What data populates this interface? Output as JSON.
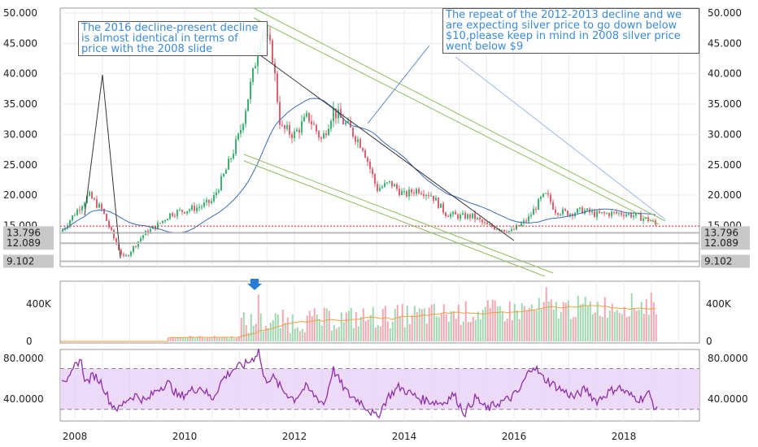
{
  "colors": {
    "up": "#3cb371",
    "down": "#e06070",
    "ma": "#3b6bb5",
    "volume_ma": "#f0a040",
    "rsi": "#8e2fa8",
    "rsi_band": "#e8d0f6",
    "channel": "#8fbf60",
    "trend": "#333333",
    "support": "#bbbbbb",
    "last_price": "#e03030",
    "annotation_text": "#3a8ad4",
    "arrow": "#2a7bd5"
  },
  "annotations": [
    {
      "text": "The 2016 decline-present decline is almost identical in terms of price with the 2008 slide"
    },
    {
      "text": "The repeat of the 2012-2013 decline and we are expecting silver price to go down below $10,please keep in mind in 2008 silver price went below $9"
    }
  ],
  "chart_data": [
    {
      "type": "candlestick",
      "panel": "price",
      "title": "",
      "y_ticks": [
        "50.000",
        "45.000",
        "40.000",
        "35.000",
        "30.000",
        "25.000",
        "20.000",
        "15.000"
      ],
      "ylim": [
        8,
        51
      ],
      "price_labels": [
        "13.796",
        "12.089",
        "9.102"
      ],
      "horizontal_levels": [
        13.796,
        12.089,
        9.102
      ],
      "series": [
        {
          "x": [
            2007.75,
            2008.0,
            2008.25,
            2008.5,
            2008.75,
            2008.9,
            2009.25,
            2009.5,
            2009.75,
            2010.0,
            2010.25,
            2010.5,
            2010.75,
            2011.0,
            2011.25,
            2011.4,
            2011.6,
            2011.75,
            2012.0,
            2012.25,
            2012.5,
            2012.7,
            2013.0,
            2013.25,
            2013.5,
            2013.75,
            2014.0,
            2014.25,
            2014.5,
            2014.75,
            2015.0,
            2015.25,
            2015.5,
            2015.75,
            2015.95,
            2016.25,
            2016.5,
            2016.6,
            2016.75,
            2017.0,
            2017.25,
            2017.5,
            2017.75,
            2018.0,
            2018.25,
            2018.5,
            2018.6
          ],
          "values": [
            14,
            17,
            20,
            17.5,
            12,
            9.5,
            13.5,
            15,
            17,
            17.5,
            18,
            19,
            24,
            30,
            40,
            48,
            43,
            31,
            30,
            33,
            29,
            34,
            31,
            28,
            21,
            22,
            20,
            21,
            20,
            17,
            16.5,
            16.5,
            15,
            14.5,
            14,
            16,
            19.5,
            20,
            17.5,
            17,
            17.5,
            16.8,
            17,
            17,
            16.5,
            15.8,
            14.9
          ]
        }
      ]
    },
    {
      "type": "bar",
      "panel": "volume",
      "y_ticks": [
        "400K",
        "0"
      ],
      "ylim": [
        0,
        620000
      ]
    },
    {
      "type": "line",
      "panel": "rsi",
      "y_ticks": [
        "80.0000",
        "40.0000"
      ],
      "ylim": [
        18,
        92
      ],
      "band": [
        30,
        70
      ],
      "series": [
        {
          "x": [
            2007.75,
            2007.9,
            2008.0,
            2008.1,
            2008.2,
            2008.35,
            2008.5,
            2008.65,
            2008.8,
            2008.95,
            2009.1,
            2009.3,
            2009.5,
            2009.7,
            2009.9,
            2010.1,
            2010.3,
            2010.5,
            2010.7,
            2010.9,
            2011.1,
            2011.25,
            2011.35,
            2011.45,
            2011.6,
            2011.8,
            2012.0,
            2012.2,
            2012.4,
            2012.55,
            2012.7,
            2012.85,
            2013.0,
            2013.2,
            2013.35,
            2013.5,
            2013.7,
            2013.9,
            2014.1,
            2014.3,
            2014.5,
            2014.7,
            2014.9,
            2015.1,
            2015.3,
            2015.5,
            2015.7,
            2015.9,
            2016.1,
            2016.2,
            2016.35,
            2016.5,
            2016.7,
            2016.9,
            2017.1,
            2017.3,
            2017.5,
            2017.7,
            2017.9,
            2018.1,
            2018.3,
            2018.45,
            2018.55,
            2018.62
          ],
          "values": [
            62,
            58,
            72,
            80,
            56,
            64,
            55,
            36,
            30,
            40,
            44,
            38,
            50,
            56,
            42,
            48,
            52,
            40,
            60,
            70,
            74,
            80,
            88,
            58,
            62,
            48,
            40,
            52,
            42,
            35,
            70,
            55,
            44,
            38,
            30,
            22,
            42,
            52,
            46,
            40,
            38,
            36,
            45,
            26,
            42,
            30,
            36,
            40,
            48,
            60,
            74,
            62,
            55,
            48,
            42,
            50,
            38,
            46,
            52,
            44,
            40,
            46,
            34,
            27
          ]
        }
      ]
    }
  ],
  "x_axis": {
    "ticks": [
      "2008",
      "2010",
      "2012",
      "2014",
      "2016",
      "2018"
    ]
  }
}
